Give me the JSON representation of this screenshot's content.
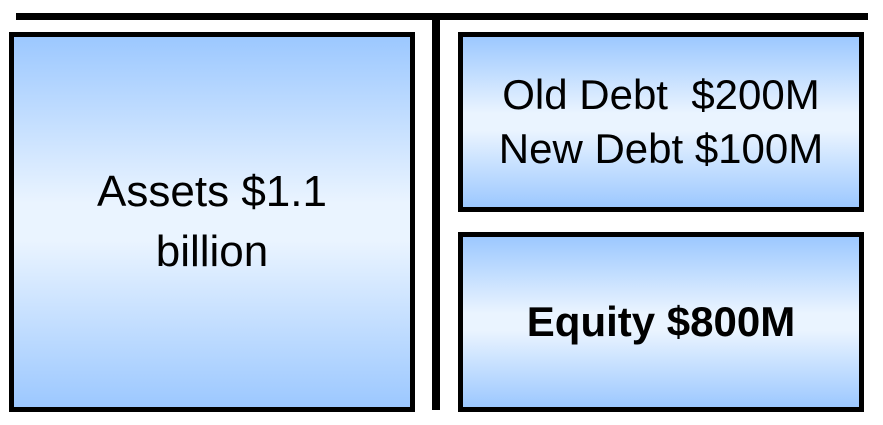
{
  "diagram": {
    "assets": {
      "line1": "Assets $1.1",
      "line2": "billion"
    },
    "liabilities": {
      "old_debt": "Old Debt  $200M",
      "new_debt": "New Debt $100M"
    },
    "equity": {
      "label": "Equity $800M"
    }
  },
  "colors": {
    "box_gradient_edge": "#9cc8ff",
    "box_gradient_center": "#eaf4ff",
    "border": "#000000"
  }
}
